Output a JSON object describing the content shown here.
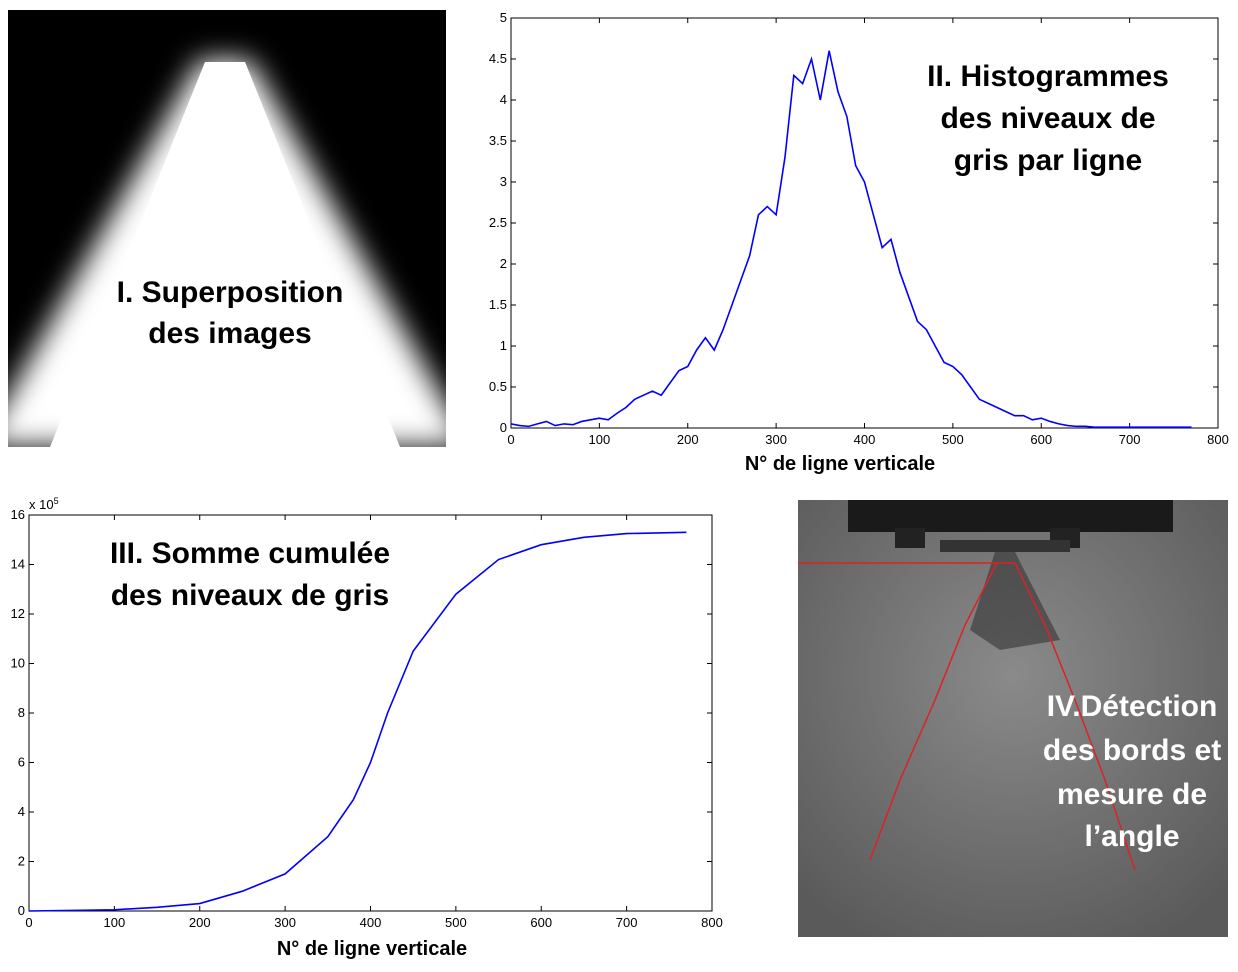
{
  "panels": [
    {
      "lines": [
        "I. Superposition",
        "des images"
      ]
    },
    {
      "lines": [
        "IV.Détection",
        "des bords et",
        "mesure de",
        "l’angle"
      ]
    }
  ],
  "chart_data": [
    {
      "type": "line",
      "title_lines": [
        "II. Histogrammes",
        "des niveaux de",
        "gris par ligne"
      ],
      "x_label": "N° de ligne verticale",
      "color": "#0000ff",
      "x": [
        0,
        10,
        20,
        30,
        40,
        50,
        60,
        70,
        80,
        90,
        100,
        110,
        120,
        130,
        140,
        150,
        160,
        170,
        180,
        190,
        200,
        210,
        220,
        230,
        240,
        250,
        260,
        270,
        280,
        290,
        300,
        310,
        320,
        330,
        340,
        350,
        360,
        370,
        380,
        390,
        400,
        410,
        420,
        430,
        440,
        450,
        460,
        470,
        480,
        490,
        500,
        510,
        520,
        530,
        540,
        550,
        560,
        570,
        580,
        590,
        600,
        610,
        620,
        630,
        640,
        650,
        660,
        670,
        680,
        690,
        700,
        710,
        720,
        730,
        740,
        750,
        760,
        770
      ],
      "values": [
        0.05,
        0.03,
        0.02,
        0.05,
        0.08,
        0.03,
        0.05,
        0.04,
        0.08,
        0.1,
        0.12,
        0.1,
        0.18,
        0.25,
        0.35,
        0.4,
        0.45,
        0.4,
        0.55,
        0.7,
        0.75,
        0.95,
        1.1,
        0.95,
        1.2,
        1.5,
        1.8,
        2.1,
        2.6,
        2.7,
        2.6,
        3.3,
        4.3,
        4.2,
        4.5,
        4.0,
        4.6,
        4.1,
        3.8,
        3.2,
        3.0,
        2.6,
        2.2,
        2.3,
        1.9,
        1.6,
        1.3,
        1.2,
        1.0,
        0.8,
        0.75,
        0.65,
        0.5,
        0.35,
        0.3,
        0.25,
        0.2,
        0.15,
        0.15,
        0.1,
        0.12,
        0.08,
        0.05,
        0.03,
        0.02,
        0.02,
        0.01,
        0.01,
        0.01,
        0.01,
        0.01,
        0.01,
        0.01,
        0.01,
        0.01,
        0.01,
        0.01,
        0.01
      ],
      "xlim": [
        0,
        800
      ],
      "xticks": [
        0,
        100,
        200,
        300,
        400,
        500,
        600,
        700,
        800
      ],
      "ylim": [
        0,
        5
      ],
      "yticks": [
        0,
        0.5,
        1,
        1.5,
        2,
        2.5,
        3,
        3.5,
        4,
        4.5,
        5
      ]
    },
    {
      "type": "line",
      "title_lines": [
        "III. Somme cumulée",
        "des niveaux de gris"
      ],
      "x_label": "N° de ligne verticale",
      "color": "#0000ff",
      "axis_multiplier": {
        "base": "x 10",
        "exponent": "5"
      },
      "x": [
        0,
        100,
        150,
        200,
        250,
        300,
        350,
        380,
        400,
        420,
        450,
        500,
        550,
        600,
        650,
        700,
        770
      ],
      "values": [
        0,
        0.05,
        0.15,
        0.3,
        0.8,
        1.5,
        3,
        4.5,
        6,
        8,
        10.5,
        12.8,
        14.2,
        14.8,
        15.1,
        15.25,
        15.3
      ],
      "xlim": [
        0,
        800
      ],
      "xticks": [
        0,
        100,
        200,
        300,
        400,
        500,
        600,
        700,
        800
      ],
      "ylim": [
        0,
        16
      ],
      "yticks": [
        0,
        2,
        4,
        6,
        8,
        10,
        12,
        14,
        16
      ]
    }
  ]
}
